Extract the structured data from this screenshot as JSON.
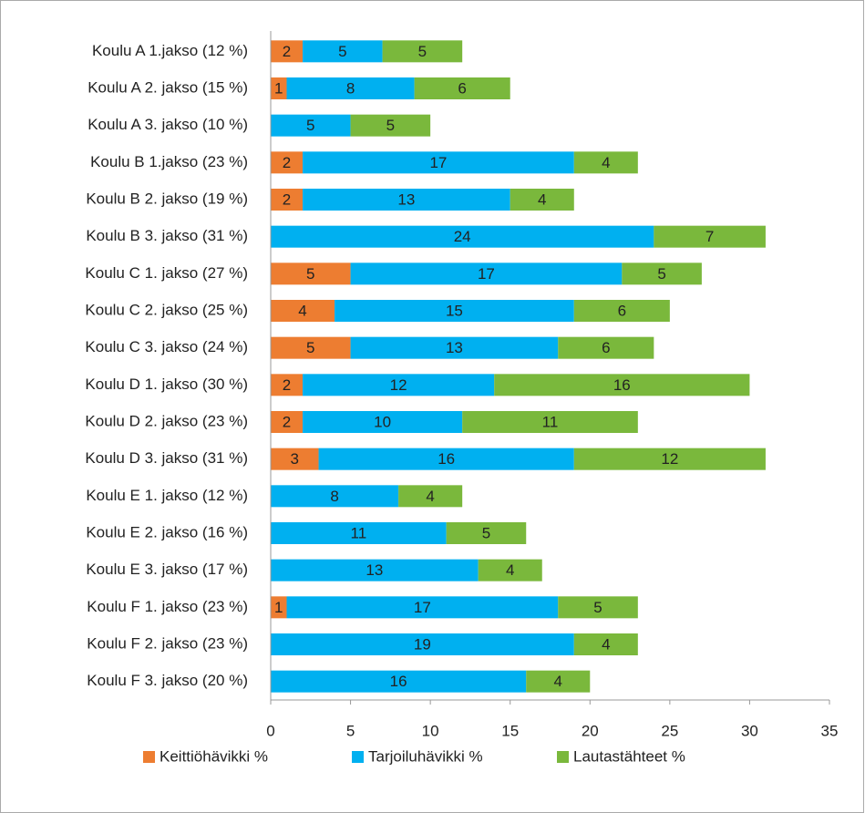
{
  "chart_data": {
    "type": "stacked-bar-horizontal",
    "categories": [
      "Koulu A 1.jakso (12 %)",
      "Koulu A 2. jakso (15 %)",
      "Koulu A 3. jakso (10 %)",
      "Koulu B 1.jakso (23 %)",
      "Koulu B 2. jakso (19 %)",
      "Koulu B 3. jakso (31 %)",
      "Koulu C 1. jakso (27 %)",
      "Koulu C 2. jakso (25 %)",
      "Koulu C 3. jakso (24 %)",
      "Koulu D 1. jakso (30 %)",
      "Koulu D 2. jakso (23 %)",
      "Koulu D 3. jakso (31 %)",
      "Koulu E 1. jakso (12 %)",
      "Koulu E 2. jakso (16 %)",
      "Koulu E 3. jakso (17 %)",
      "Koulu F 1. jakso (23 %)",
      "Koulu F 2. jakso (23 %)",
      "Koulu F 3. jakso (20 %)"
    ],
    "series": [
      {
        "name": "Keittiöhävikki %",
        "color": "#ED7D31",
        "values": [
          2,
          1,
          0,
          2,
          2,
          0,
          5,
          4,
          5,
          2,
          2,
          3,
          0,
          0,
          0,
          1,
          0,
          0
        ]
      },
      {
        "name": "Tarjoiluhävikki %",
        "color": "#00B0F0",
        "values": [
          5,
          8,
          5,
          17,
          13,
          24,
          17,
          15,
          13,
          12,
          10,
          16,
          8,
          11,
          13,
          17,
          19,
          16
        ]
      },
      {
        "name": "Lautastähteet %",
        "color": "#7AB83C",
        "values": [
          5,
          6,
          5,
          4,
          4,
          7,
          5,
          6,
          6,
          16,
          11,
          12,
          4,
          5,
          4,
          5,
          4,
          4
        ]
      }
    ],
    "xlim": [
      0,
      35
    ],
    "xticks": [
      0,
      5,
      10,
      15,
      20,
      25,
      30,
      35
    ],
    "legend": "bottom"
  }
}
